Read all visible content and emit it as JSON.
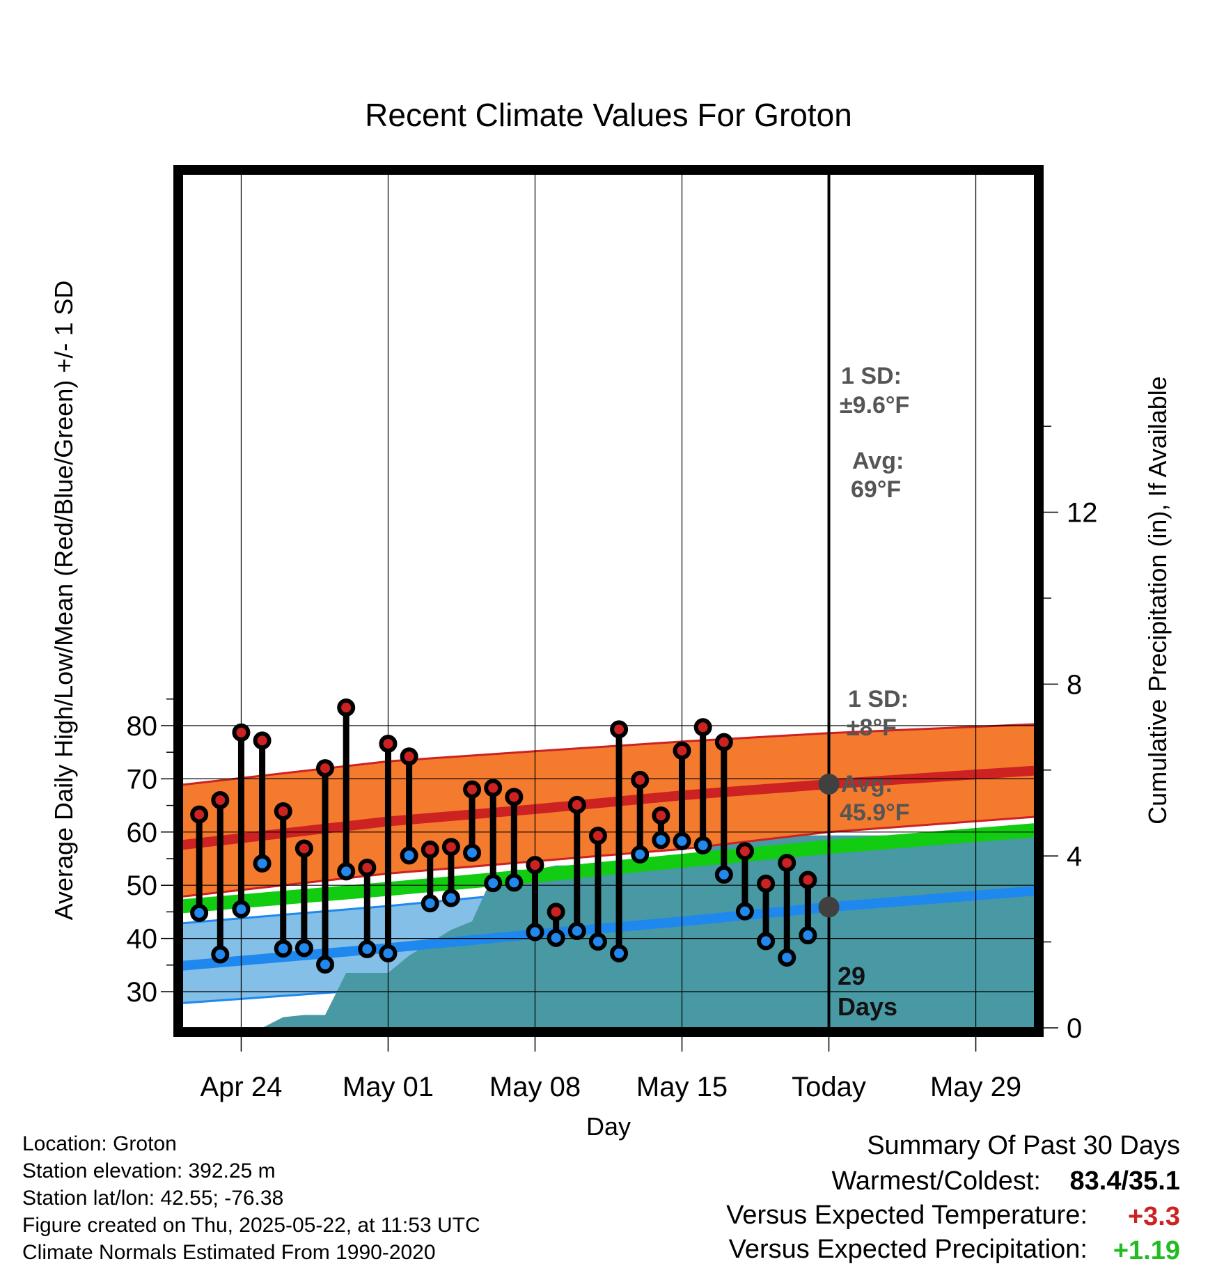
{
  "chart_data": {
    "type": "line",
    "title": "Recent Climate Values For Groton",
    "xlabel": "Day",
    "ylabel": "Average Daily High/Low/Mean (Red/Blue/Green) +/- 1 SD",
    "y2label": "Cumulative Precipitation (in), If Available",
    "ylim": [
      27.5,
      89.5
    ],
    "y2lim": [
      0,
      17.6
    ],
    "xlim": [
      "2025-04-21",
      "2025-06-01"
    ],
    "yticks": [
      30,
      40,
      50,
      60,
      70,
      80
    ],
    "y2ticks": [
      0,
      4,
      8,
      12
    ],
    "xticks": [
      {
        "date": "2025-04-24",
        "label": "Apr 24"
      },
      {
        "date": "2025-05-01",
        "label": "May 01"
      },
      {
        "date": "2025-05-08",
        "label": "May 08"
      },
      {
        "date": "2025-05-15",
        "label": "May 15"
      },
      {
        "date": "2025-05-22",
        "label": "Today"
      },
      {
        "date": "2025-05-29",
        "label": "May 29"
      }
    ],
    "today": "2025-05-22",
    "normals": {
      "dates": [
        "2025-04-21",
        "2025-05-01",
        "2025-05-08",
        "2025-05-15",
        "2025-05-22",
        "2025-06-01"
      ],
      "high_avg": [
        57.5,
        62.0,
        64.3,
        66.9,
        69.0,
        71.6
      ],
      "high_upper": [
        68.8,
        73.3,
        75.2,
        77.0,
        78.6,
        80.3
      ],
      "high_lower": [
        47.8,
        52.2,
        54.5,
        56.8,
        60.0,
        62.9
      ],
      "mean_avg": [
        46.0,
        49.3,
        51.8,
        54.6,
        57.2,
        60.4
      ],
      "low_avg": [
        34.8,
        38.2,
        40.8,
        43.2,
        45.9,
        49.0
      ],
      "low_upper": [
        42.8,
        46.1,
        48.7,
        51.5,
        53.9,
        56.5
      ],
      "low_lower": [
        27.8,
        30.6,
        33.4,
        35.8,
        38.6,
        41.9
      ]
    },
    "series": [
      {
        "name": "High",
        "color": "#cc2222",
        "x": [
          "2025-04-22",
          "2025-04-23",
          "2025-04-24",
          "2025-04-25",
          "2025-04-26",
          "2025-04-27",
          "2025-04-28",
          "2025-04-29",
          "2025-04-30",
          "2025-05-01",
          "2025-05-02",
          "2025-05-03",
          "2025-05-04",
          "2025-05-05",
          "2025-05-06",
          "2025-05-07",
          "2025-05-08",
          "2025-05-09",
          "2025-05-10",
          "2025-05-11",
          "2025-05-12",
          "2025-05-13",
          "2025-05-14",
          "2025-05-15",
          "2025-05-16",
          "2025-05-17",
          "2025-05-18",
          "2025-05-19",
          "2025-05-20",
          "2025-05-21"
        ],
        "values": [
          63.3,
          66.0,
          78.7,
          77.2,
          63.9,
          56.9,
          72.0,
          83.4,
          53.3,
          76.6,
          74.2,
          56.7,
          57.2,
          68.0,
          68.3,
          66.6,
          53.8,
          45.0,
          65.1,
          59.3,
          79.3,
          69.8,
          63.1,
          75.3,
          79.7,
          76.9,
          56.4,
          50.3,
          54.2,
          51.0
        ]
      },
      {
        "name": "Low",
        "color": "#2288ee",
        "x": [
          "2025-04-22",
          "2025-04-23",
          "2025-04-24",
          "2025-04-25",
          "2025-04-26",
          "2025-04-27",
          "2025-04-28",
          "2025-04-29",
          "2025-04-30",
          "2025-05-01",
          "2025-05-02",
          "2025-05-03",
          "2025-05-04",
          "2025-05-05",
          "2025-05-06",
          "2025-05-07",
          "2025-05-08",
          "2025-05-09",
          "2025-05-10",
          "2025-05-11",
          "2025-05-12",
          "2025-05-13",
          "2025-05-14",
          "2025-05-15",
          "2025-05-16",
          "2025-05-17",
          "2025-05-18",
          "2025-05-19",
          "2025-05-20",
          "2025-05-21"
        ],
        "values": [
          44.8,
          37.0,
          45.5,
          54.1,
          38.1,
          38.2,
          35.1,
          52.6,
          38.0,
          37.2,
          55.6,
          46.6,
          47.6,
          56.1,
          50.4,
          50.5,
          41.2,
          40.1,
          41.4,
          39.4,
          37.2,
          55.8,
          58.5,
          58.3,
          57.5,
          52.0,
          45.1,
          39.5,
          36.4,
          40.6
        ]
      },
      {
        "name": "Cumulative Precipitation",
        "color": "#4899a3",
        "x": [
          "2025-04-22",
          "2025-04-23",
          "2025-04-24",
          "2025-04-25",
          "2025-04-26",
          "2025-04-27",
          "2025-04-28",
          "2025-04-29",
          "2025-04-30",
          "2025-05-01",
          "2025-05-02",
          "2025-05-03",
          "2025-05-04",
          "2025-05-05",
          "2025-05-06",
          "2025-05-07",
          "2025-05-08",
          "2025-05-09",
          "2025-05-10",
          "2025-05-11",
          "2025-05-12",
          "2025-05-13",
          "2025-05-14",
          "2025-05-15",
          "2025-05-16",
          "2025-05-17",
          "2025-05-18",
          "2025-05-19",
          "2025-05-20",
          "2025-05-21",
          "2025-06-01"
        ],
        "values": [
          0,
          0,
          0,
          0,
          0.25,
          0.3,
          0.3,
          1.28,
          1.28,
          1.28,
          1.68,
          1.98,
          2.28,
          2.48,
          3.55,
          3.68,
          3.68,
          3.78,
          3.78,
          3.78,
          3.78,
          3.88,
          3.88,
          3.88,
          4.18,
          4.38,
          4.48,
          4.48,
          4.48,
          4.48,
          4.48
        ]
      }
    ],
    "annotations": {
      "high_sd_label": "1 SD:",
      "high_sd_value": "±9.6°F",
      "high_avg_label": "Avg:",
      "high_avg_value": "69°F",
      "high_avg_point": 69.0,
      "low_sd_label": "1 SD:",
      "low_sd_value": "±8°F",
      "low_avg_label": "Avg:",
      "low_avg_value": "45.9°F",
      "low_avg_point": 45.9,
      "days_count": "29",
      "days_unit": "Days"
    },
    "colors": {
      "high_band": "#f47a2e",
      "high_line": "#cc2222",
      "low_band": "#83bfe6",
      "low_line": "#1e88ee",
      "mean_line": "#11cc11",
      "precip": "#4899a3",
      "annotation": "#555555",
      "marker_gray": "#404040"
    },
    "grid": true
  },
  "footer": {
    "location": "Location: Groton",
    "elevation": "Station elevation: 392.25 m",
    "latlon": "Station lat/lon: 42.55; -76.38",
    "created": "Figure created on Thu, 2025-05-22, at 11:53 UTC",
    "normals": "Climate Normals Estimated From 1990-2020"
  },
  "summary": {
    "title": "Summary Of Past 30 Days",
    "warm_cold_label": "Warmest/Coldest:",
    "warm_cold_value": "83.4/35.1",
    "temp_label": "Versus Expected Temperature:",
    "temp_value": "+3.3",
    "temp_color": "#cc2222",
    "precip_label": "Versus Expected Precipitation:",
    "precip_value": "+1.19",
    "precip_color": "#22bb22"
  }
}
